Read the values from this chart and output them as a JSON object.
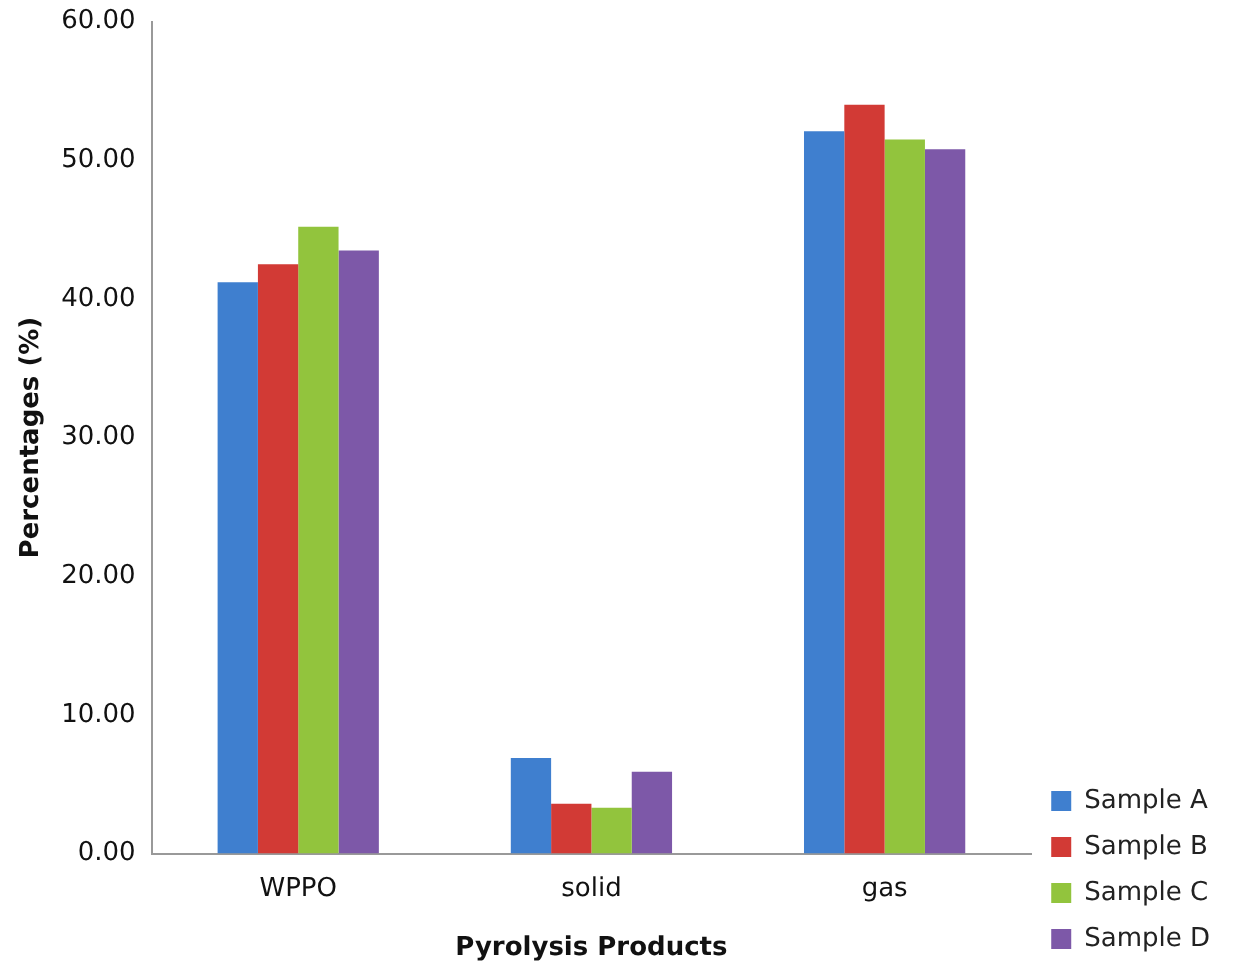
{
  "chart_data": {
    "type": "bar",
    "xlabel": "Pyrolysis Products",
    "ylabel": "Percentages (%)",
    "categories": [
      "WPPO",
      "solid",
      "gas"
    ],
    "series": [
      {
        "name": "Sample A",
        "color": "#3f7fcf",
        "values": [
          41.2,
          6.9,
          52.1
        ]
      },
      {
        "name": "Sample B",
        "color": "#d23a35",
        "values": [
          42.5,
          3.6,
          54.0
        ]
      },
      {
        "name": "Sample C",
        "color": "#92c43d",
        "values": [
          45.2,
          3.3,
          51.5
        ]
      },
      {
        "name": "Sample D",
        "color": "#7d58a8",
        "values": [
          43.5,
          5.9,
          50.8
        ]
      }
    ],
    "ylim": [
      0,
      60
    ],
    "yticks": [
      {
        "value": 0,
        "label": "0.00"
      },
      {
        "value": 10,
        "label": "10.00"
      },
      {
        "value": 20,
        "label": "20.00"
      },
      {
        "value": 30,
        "label": "30.00"
      },
      {
        "value": 40,
        "label": "40.00"
      },
      {
        "value": 50,
        "label": "50.00"
      },
      {
        "value": 60,
        "label": "60.00"
      }
    ],
    "grid": false,
    "legend": "bottom right"
  }
}
